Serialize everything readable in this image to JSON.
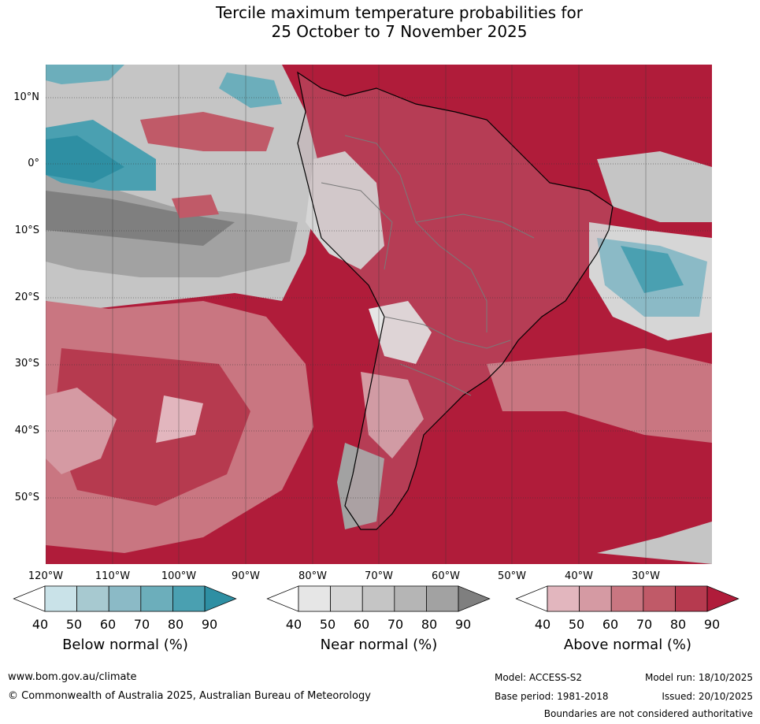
{
  "title": {
    "line1": "Tercile maximum temperature probabilities for",
    "line2": "25 October to 7 November 2025"
  },
  "map": {
    "lat_labels": [
      "10°N",
      "0°",
      "10°S",
      "20°S",
      "30°S",
      "40°S",
      "50°S"
    ],
    "lon_labels": [
      "120°W",
      "110°W",
      "100°W",
      "90°W",
      "80°W",
      "70°W",
      "60°W",
      "50°W",
      "40°W",
      "30°W"
    ]
  },
  "colorbars": [
    {
      "title": "Below normal (%)",
      "ticks": [
        "40",
        "50",
        "60",
        "70",
        "80",
        "90"
      ],
      "colors": [
        "#ffffff",
        "#c9e2e8",
        "#a7c9d0",
        "#8bbac6",
        "#6caebb",
        "#4aa0b1",
        "#2e8fa3"
      ]
    },
    {
      "title": "Near normal (%)",
      "ticks": [
        "40",
        "50",
        "60",
        "70",
        "80",
        "90"
      ],
      "colors": [
        "#ffffff",
        "#e6e6e6",
        "#d6d6d6",
        "#c5c5c5",
        "#b5b5b5",
        "#a2a2a2",
        "#7f7f7f"
      ]
    },
    {
      "title": "Above normal (%)",
      "ticks": [
        "40",
        "50",
        "60",
        "70",
        "80",
        "90"
      ],
      "colors": [
        "#ffffff",
        "#e2b6be",
        "#d59aa3",
        "#c97681",
        "#c05a68",
        "#b63a4f",
        "#b01c3a"
      ]
    }
  ],
  "footer": {
    "website": "www.bom.gov.au/climate",
    "copyright": "© Commonwealth of Australia 2025, Australian Bureau of Meteorology",
    "model": "Model: ACCESS-S2",
    "model_run": "Model run: 18/10/2025",
    "base_period": "Base period: 1981-2018",
    "issued": "Issued: 20/10/2025",
    "disclaimer": "Boundaries are not considered authoritative"
  }
}
